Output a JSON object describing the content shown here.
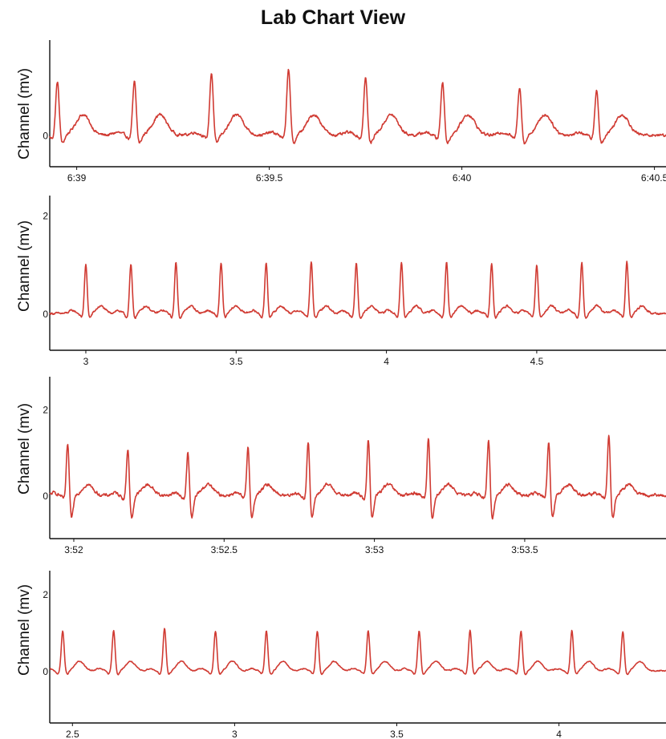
{
  "page": {
    "title": "Lab Chart View"
  },
  "theme": {
    "trace_color": "#d03a32",
    "axis_color": "#111111",
    "background": "#ffffff"
  },
  "chart_data": [
    {
      "type": "line",
      "ylabel": "Channel (mv)",
      "y_ticks": [
        0
      ],
      "x_ticks": [
        {
          "value": 399.0,
          "label": "6:39"
        },
        {
          "value": 399.5,
          "label": "6:39.5"
        },
        {
          "value": 400.0,
          "label": "6:40"
        },
        {
          "value": 400.5,
          "label": "6:40.5"
        }
      ],
      "xlim": [
        398.93,
        400.53
      ],
      "ylim": [
        -0.7,
        2.1
      ],
      "grid": false,
      "beats": {
        "start": 398.95,
        "rr": 0.2,
        "count": 8,
        "r_amplitudes": [
          1.2,
          1.2,
          1.4,
          1.5,
          1.3,
          1.2,
          1.1,
          1.0
        ],
        "t_wave": 0.45,
        "s_depth": 0.2,
        "noise": 0.06
      }
    },
    {
      "type": "line",
      "ylabel": "Channel (mv)",
      "y_ticks": [
        0,
        2
      ],
      "x_ticks": [
        {
          "value": 3.0,
          "label": "3"
        },
        {
          "value": 3.5,
          "label": "3.5"
        },
        {
          "value": 4.0,
          "label": "4"
        },
        {
          "value": 4.5,
          "label": "4.5"
        }
      ],
      "xlim": [
        2.88,
        4.93
      ],
      "ylim": [
        -0.75,
        2.4
      ],
      "grid": false,
      "beats": {
        "start": 3.0,
        "rr": 0.15,
        "count": 13,
        "r_amplitudes": [
          1.0,
          1.0,
          1.05,
          1.05,
          1.05,
          1.05,
          1.05,
          1.05,
          1.05,
          1.05,
          1.0,
          1.05,
          1.05
        ],
        "t_wave": 0.15,
        "s_depth": 0.1,
        "noise": 0.04
      }
    },
    {
      "type": "line",
      "ylabel": "Channel (mv)",
      "y_ticks": [
        0,
        2
      ],
      "x_ticks": [
        {
          "value": 232.0,
          "label": "3:52"
        },
        {
          "value": 232.5,
          "label": "3:52.5"
        },
        {
          "value": 233.0,
          "label": "3:53"
        },
        {
          "value": 233.5,
          "label": "3:53.5"
        }
      ],
      "xlim": [
        231.92,
        233.97
      ],
      "ylim": [
        -1.0,
        2.75
      ],
      "grid": false,
      "beats": {
        "start": 231.98,
        "rr": 0.2,
        "count": 10,
        "r_amplitudes": [
          1.25,
          1.15,
          1.05,
          1.2,
          1.3,
          1.35,
          1.4,
          1.35,
          1.3,
          1.45
        ],
        "t_wave": 0.25,
        "s_depth": 0.55,
        "noise": 0.07
      }
    },
    {
      "type": "line",
      "ylabel": "Channel (mv)",
      "y_ticks": [
        0,
        2
      ],
      "x_ticks": [
        {
          "value": 2.5,
          "label": "2.5"
        },
        {
          "value": 3.0,
          "label": "3"
        },
        {
          "value": 3.5,
          "label": "3.5"
        },
        {
          "value": 4.0,
          "label": "4"
        }
      ],
      "xlim": [
        2.43,
        4.33
      ],
      "ylim": [
        -1.35,
        2.6
      ],
      "grid": false,
      "beats": {
        "start": 2.47,
        "rr": 0.157,
        "count": 12,
        "r_amplitudes": [
          1.05,
          1.05,
          1.1,
          1.05,
          1.05,
          1.05,
          1.05,
          1.05,
          1.05,
          1.05,
          1.05,
          1.05
        ],
        "t_wave": 0.25,
        "s_depth": 0.1,
        "noise": 0.03
      }
    }
  ]
}
